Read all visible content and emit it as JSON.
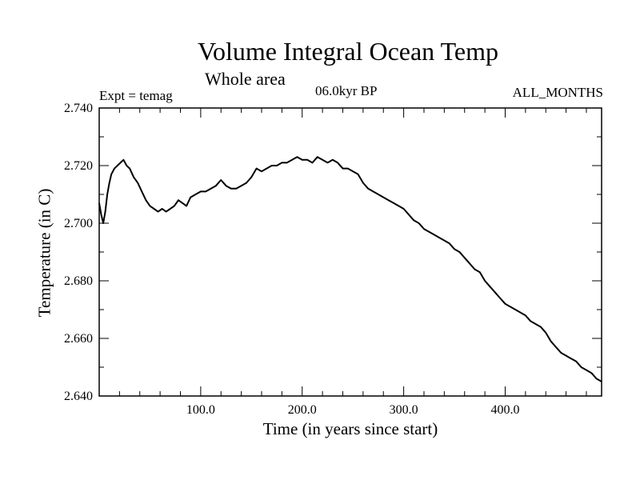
{
  "page": {
    "background": "#ffffff",
    "ink": "#000000"
  },
  "header": {
    "title": "Volume Integral Ocean Temp",
    "subtitle": "Whole area",
    "expt": "Expt = temag",
    "period": "06.0kyr BP",
    "months": "ALL_MONTHS"
  },
  "chart_data": {
    "type": "line",
    "title": "Volume Integral Ocean Temp",
    "subtitle": "Whole area",
    "xlabel": "Time (in years since start)",
    "ylabel": "Temperature (in C)",
    "xlim": [
      0,
      495
    ],
    "ylim": [
      2.64,
      2.74
    ],
    "xticks": [
      100,
      200,
      300,
      400
    ],
    "xtick_labels": [
      "100.0",
      "200.0",
      "300.0",
      "400.0"
    ],
    "yticks": [
      2.64,
      2.66,
      2.68,
      2.7,
      2.72,
      2.74
    ],
    "ytick_labels": [
      "2.640",
      "2.660",
      "2.680",
      "2.700",
      "2.720",
      "2.740"
    ],
    "grid": false,
    "legend": "none",
    "series": [
      {
        "name": "Volume Integral Ocean Temp",
        "x": [
          0,
          2,
          4,
          6,
          8,
          10,
          12,
          15,
          18,
          21,
          24,
          27,
          30,
          34,
          38,
          42,
          46,
          50,
          54,
          58,
          62,
          66,
          70,
          74,
          78,
          82,
          86,
          90,
          95,
          100,
          105,
          110,
          115,
          120,
          125,
          130,
          135,
          140,
          145,
          150,
          155,
          160,
          165,
          170,
          175,
          180,
          185,
          190,
          195,
          200,
          205,
          210,
          215,
          220,
          225,
          230,
          235,
          240,
          245,
          250,
          255,
          260,
          265,
          270,
          275,
          280,
          285,
          290,
          295,
          300,
          305,
          310,
          315,
          320,
          325,
          330,
          335,
          340,
          345,
          350,
          355,
          360,
          365,
          370,
          375,
          380,
          385,
          390,
          395,
          400,
          405,
          410,
          415,
          420,
          425,
          430,
          435,
          440,
          445,
          450,
          455,
          460,
          465,
          470,
          475,
          480,
          485,
          490,
          495
        ],
        "y": [
          2.707,
          2.703,
          2.7,
          2.704,
          2.71,
          2.714,
          2.717,
          2.719,
          2.72,
          2.721,
          2.722,
          2.72,
          2.719,
          2.716,
          2.714,
          2.711,
          2.708,
          2.706,
          2.705,
          2.704,
          2.705,
          2.704,
          2.705,
          2.706,
          2.708,
          2.707,
          2.706,
          2.709,
          2.71,
          2.711,
          2.711,
          2.712,
          2.713,
          2.715,
          2.713,
          2.712,
          2.712,
          2.713,
          2.714,
          2.716,
          2.719,
          2.718,
          2.719,
          2.72,
          2.72,
          2.721,
          2.721,
          2.722,
          2.723,
          2.722,
          2.722,
          2.721,
          2.723,
          2.722,
          2.721,
          2.722,
          2.721,
          2.719,
          2.719,
          2.718,
          2.717,
          2.714,
          2.712,
          2.711,
          2.71,
          2.709,
          2.708,
          2.707,
          2.706,
          2.705,
          2.703,
          2.701,
          2.7,
          2.698,
          2.697,
          2.696,
          2.695,
          2.694,
          2.693,
          2.691,
          2.69,
          2.688,
          2.686,
          2.684,
          2.683,
          2.68,
          2.678,
          2.676,
          2.674,
          2.672,
          2.671,
          2.67,
          2.669,
          2.668,
          2.666,
          2.665,
          2.664,
          2.662,
          2.659,
          2.657,
          2.655,
          2.654,
          2.653,
          2.652,
          2.65,
          2.649,
          2.648,
          2.646,
          2.645
        ]
      }
    ]
  }
}
